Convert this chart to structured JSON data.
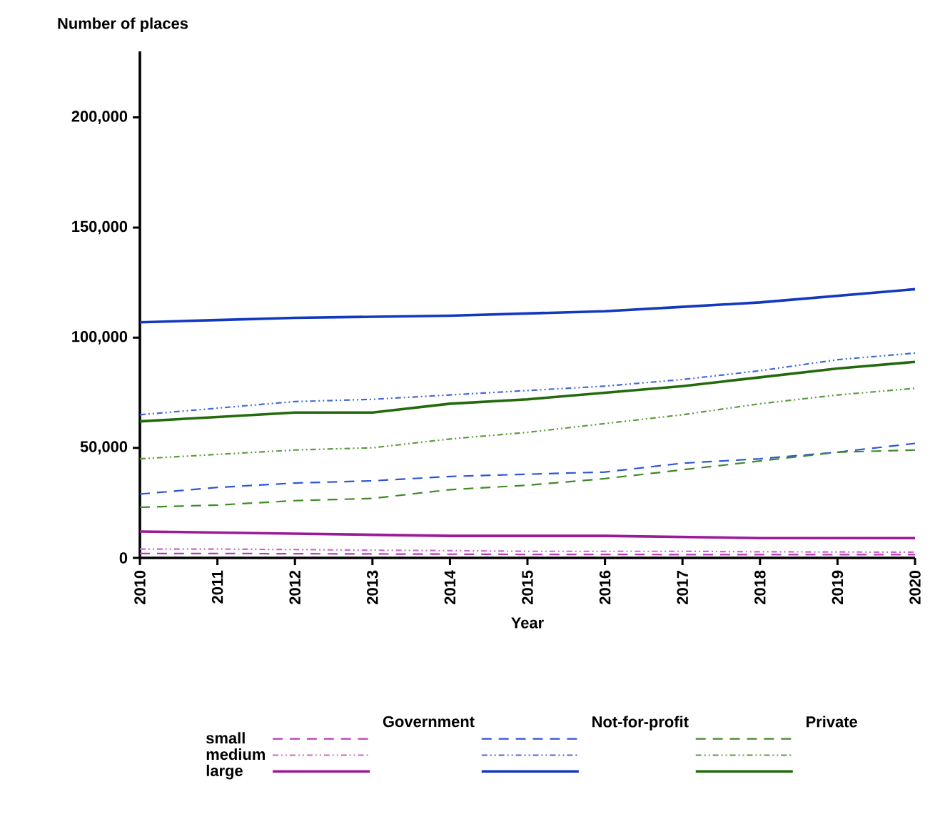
{
  "chart_data": {
    "type": "line",
    "ylabel": "Number of places",
    "xlabel": "Year",
    "x": [
      2010,
      2011,
      2012,
      2013,
      2014,
      2015,
      2016,
      2017,
      2018,
      2019,
      2020
    ],
    "xlim": [
      2010,
      2020
    ],
    "xticks": [
      2010,
      2011,
      2012,
      2013,
      2014,
      2015,
      2016,
      2017,
      2018,
      2019,
      2020
    ],
    "ylim": [
      0,
      230000
    ],
    "yticks": [
      0,
      {
        "value": 50000,
        "label": "50,000"
      },
      {
        "value": 100000,
        "label": "100,000"
      },
      {
        "value": 150000,
        "label": "150,000"
      },
      {
        "value": 200000,
        "label": "200,000"
      }
    ],
    "annotations": [
      "Government",
      "Not-for-profit",
      "Private",
      "small",
      "medium",
      "large"
    ],
    "series": [
      {
        "color": "#b83cb8",
        "line_style": "dashed",
        "values": [
          2000,
          2000,
          1900,
          1800,
          1700,
          1600,
          1600,
          1500,
          1500,
          1500,
          1500
        ]
      },
      {
        "color": "#cc66cc",
        "line_style": "dashdotdotted",
        "values": [
          4000,
          4000,
          3800,
          3500,
          3300,
          3000,
          3000,
          3000,
          2800,
          2700,
          2600
        ]
      },
      {
        "color": "#9a1a9a",
        "line_style": "solid",
        "values": [
          12000,
          11500,
          11000,
          10500,
          10000,
          10000,
          10000,
          9500,
          9000,
          9000,
          9000
        ]
      },
      {
        "color": "#2a55d8",
        "line_style": "dashed",
        "values": [
          29000,
          32000,
          34000,
          35000,
          37000,
          38000,
          39000,
          43000,
          45000,
          48000,
          52000
        ]
      },
      {
        "color": "#4468dc",
        "line_style": "dashdotdotted",
        "values": [
          65000,
          68000,
          71000,
          72000,
          74000,
          76000,
          78000,
          81000,
          85000,
          90000,
          93000
        ]
      },
      {
        "color": "#1238c0",
        "line_style": "solid",
        "values": [
          107000,
          108000,
          109000,
          109500,
          110000,
          111000,
          112000,
          114000,
          116000,
          119000,
          122000
        ]
      },
      {
        "color": "#3d8a24",
        "line_style": "dashed",
        "values": [
          23000,
          24000,
          26000,
          27000,
          31000,
          33000,
          36000,
          40000,
          44000,
          48000,
          49000
        ]
      },
      {
        "color": "#5c9a40",
        "line_style": "dashdotdotted",
        "values": [
          45000,
          47000,
          49000,
          50000,
          54000,
          57000,
          61000,
          65000,
          70000,
          74000,
          77000
        ]
      },
      {
        "color": "#226a0c",
        "line_style": "solid",
        "values": [
          62000,
          64000,
          66000,
          66000,
          70000,
          72000,
          75000,
          78000,
          82000,
          86000,
          89000
        ]
      }
    ]
  }
}
